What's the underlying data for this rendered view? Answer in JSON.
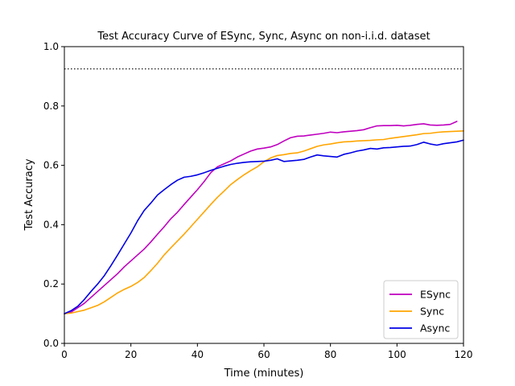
{
  "chart_data": {
    "type": "line",
    "title": "Test Accuracy Curve of ESync, Sync, Async on non-i.i.d. dataset",
    "xlabel": "Time (minutes)",
    "ylabel": "Test Accuracy",
    "xlim": [
      0,
      120
    ],
    "ylim": [
      0.0,
      1.0
    ],
    "xticks": [
      0,
      20,
      40,
      60,
      80,
      100,
      120
    ],
    "yticks": [
      0.0,
      0.2,
      0.4,
      0.6,
      0.8,
      1.0
    ],
    "xtick_labels": [
      "0",
      "20",
      "40",
      "60",
      "80",
      "100",
      "120"
    ],
    "ytick_labels": [
      "0.0",
      "0.2",
      "0.4",
      "0.6",
      "0.8",
      "1.0"
    ],
    "grid": false,
    "legend_position": "lower right",
    "reference_line": {
      "y": 0.925,
      "style": "dotted",
      "color": "#000000"
    },
    "series": [
      {
        "name": "ESync",
        "color": "#bf00bf",
        "x": [
          0,
          2,
          4,
          6,
          8,
          10,
          12,
          14,
          16,
          18,
          20,
          22,
          24,
          26,
          28,
          30,
          32,
          34,
          36,
          38,
          40,
          42,
          44,
          46,
          48,
          50,
          52,
          54,
          56,
          58,
          60,
          62,
          64,
          66,
          68,
          70,
          72,
          74,
          76,
          78,
          80,
          82,
          84,
          86,
          88,
          90,
          92,
          94,
          96,
          98,
          100,
          102,
          104,
          106,
          108,
          110,
          112,
          114,
          116,
          118
        ],
        "y": [
          0.1,
          0.105,
          0.12,
          0.135,
          0.155,
          0.175,
          0.195,
          0.215,
          0.235,
          0.258,
          0.278,
          0.298,
          0.318,
          0.342,
          0.368,
          0.393,
          0.42,
          0.442,
          0.468,
          0.493,
          0.518,
          0.545,
          0.575,
          0.595,
          0.605,
          0.615,
          0.628,
          0.638,
          0.648,
          0.655,
          0.658,
          0.662,
          0.67,
          0.682,
          0.693,
          0.698,
          0.699,
          0.702,
          0.705,
          0.708,
          0.712,
          0.71,
          0.713,
          0.715,
          0.717,
          0.72,
          0.727,
          0.733,
          0.734,
          0.734,
          0.735,
          0.733,
          0.735,
          0.738,
          0.74,
          0.736,
          0.735,
          0.736,
          0.738,
          0.748
        ]
      },
      {
        "name": "Sync",
        "color": "#ffa500",
        "x": [
          0,
          2,
          4,
          6,
          8,
          10,
          12,
          14,
          16,
          18,
          20,
          22,
          24,
          26,
          28,
          30,
          32,
          34,
          36,
          38,
          40,
          42,
          44,
          46,
          48,
          50,
          52,
          54,
          56,
          58,
          60,
          62,
          64,
          66,
          68,
          70,
          72,
          74,
          76,
          78,
          80,
          82,
          84,
          86,
          88,
          90,
          92,
          94,
          96,
          98,
          100,
          102,
          104,
          106,
          108,
          110,
          112,
          114,
          116,
          118,
          120
        ],
        "y": [
          0.1,
          0.102,
          0.107,
          0.112,
          0.12,
          0.128,
          0.14,
          0.155,
          0.17,
          0.182,
          0.192,
          0.205,
          0.222,
          0.245,
          0.27,
          0.298,
          0.322,
          0.345,
          0.368,
          0.393,
          0.418,
          0.443,
          0.468,
          0.492,
          0.513,
          0.535,
          0.552,
          0.568,
          0.582,
          0.595,
          0.612,
          0.625,
          0.633,
          0.636,
          0.64,
          0.642,
          0.648,
          0.656,
          0.664,
          0.669,
          0.672,
          0.676,
          0.679,
          0.68,
          0.682,
          0.683,
          0.684,
          0.686,
          0.687,
          0.691,
          0.694,
          0.697,
          0.7,
          0.703,
          0.707,
          0.708,
          0.711,
          0.713,
          0.714,
          0.715,
          0.716
        ]
      },
      {
        "name": "Async",
        "color": "#0000e6",
        "x": [
          0,
          2,
          4,
          6,
          8,
          10,
          12,
          14,
          16,
          18,
          20,
          22,
          24,
          26,
          28,
          30,
          32,
          34,
          36,
          38,
          40,
          42,
          44,
          46,
          48,
          50,
          52,
          54,
          56,
          58,
          60,
          62,
          64,
          66,
          68,
          70,
          72,
          74,
          76,
          78,
          80,
          82,
          84,
          86,
          88,
          90,
          92,
          94,
          96,
          98,
          100,
          102,
          104,
          106,
          108,
          110,
          112,
          114,
          116,
          118,
          120
        ],
        "y": [
          0.1,
          0.11,
          0.125,
          0.148,
          0.175,
          0.2,
          0.228,
          0.262,
          0.298,
          0.335,
          0.372,
          0.413,
          0.448,
          0.473,
          0.5,
          0.518,
          0.535,
          0.55,
          0.56,
          0.563,
          0.568,
          0.575,
          0.583,
          0.59,
          0.597,
          0.603,
          0.607,
          0.61,
          0.612,
          0.613,
          0.614,
          0.617,
          0.622,
          0.613,
          0.615,
          0.617,
          0.62,
          0.628,
          0.635,
          0.632,
          0.63,
          0.628,
          0.637,
          0.642,
          0.648,
          0.652,
          0.657,
          0.655,
          0.659,
          0.66,
          0.662,
          0.664,
          0.665,
          0.67,
          0.678,
          0.672,
          0.668,
          0.673,
          0.676,
          0.679,
          0.685
        ]
      }
    ]
  }
}
